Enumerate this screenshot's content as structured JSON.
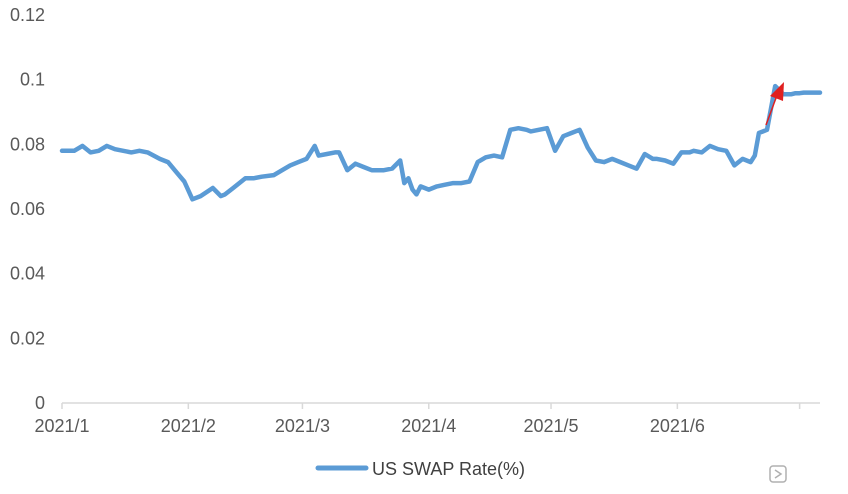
{
  "chart_data": {
    "type": "line",
    "title": "",
    "xlabel": "",
    "ylabel": "",
    "ylim": [
      0,
      0.12
    ],
    "y_ticks": [
      "0",
      "0.02",
      "0.04",
      "0.06",
      "0.08",
      "0.1",
      "0.12"
    ],
    "x_tick_labels": [
      "2021/1",
      "2021/2",
      "2021/3",
      "2021/4",
      "2021/5",
      "2021/6"
    ],
    "grid": false,
    "legend_position": "bottom",
    "series_color": "#5b9bd5",
    "annotation_arrow_color": "#e02020",
    "series": [
      {
        "name": "US SWAP Rate(%)",
        "x": [
          "2021-01-01",
          "2021-01-04",
          "2021-01-06",
          "2021-01-08",
          "2021-01-10",
          "2021-01-12",
          "2021-01-14",
          "2021-01-18",
          "2021-01-20",
          "2021-01-22",
          "2021-01-25",
          "2021-01-27",
          "2021-01-29",
          "2021-01-31",
          "2021-02-02",
          "2021-02-04",
          "2021-02-07",
          "2021-02-09",
          "2021-02-10",
          "2021-02-12",
          "2021-02-15",
          "2021-02-17",
          "2021-02-19",
          "2021-02-22",
          "2021-02-24",
          "2021-02-26",
          "2021-02-28",
          "2021-03-02",
          "2021-03-04",
          "2021-03-05",
          "2021-03-07",
          "2021-03-09",
          "2021-03-10",
          "2021-03-12",
          "2021-03-14",
          "2021-03-16",
          "2021-03-18",
          "2021-03-21",
          "2021-03-23",
          "2021-03-25",
          "2021-03-26",
          "2021-03-27",
          "2021-03-28",
          "2021-03-29",
          "2021-03-30",
          "2021-04-01",
          "2021-04-03",
          "2021-04-05",
          "2021-04-07",
          "2021-04-09",
          "2021-04-11",
          "2021-04-13",
          "2021-04-15",
          "2021-04-17",
          "2021-04-19",
          "2021-04-21",
          "2021-04-23",
          "2021-04-25",
          "2021-04-26",
          "2021-04-28",
          "2021-04-30",
          "2021-05-02",
          "2021-05-04",
          "2021-05-06",
          "2021-05-08",
          "2021-05-10",
          "2021-05-12",
          "2021-05-14",
          "2021-05-16",
          "2021-05-18",
          "2021-05-20",
          "2021-05-22",
          "2021-05-24",
          "2021-05-26",
          "2021-05-27",
          "2021-05-29",
          "2021-05-31",
          "2021-06-02",
          "2021-06-04",
          "2021-06-05",
          "2021-06-07",
          "2021-06-09",
          "2021-06-11",
          "2021-06-13",
          "2021-06-15",
          "2021-06-17",
          "2021-06-19",
          "2021-06-20",
          "2021-06-21",
          "2021-06-23",
          "2021-06-25",
          "2021-06-27",
          "2021-06-29",
          "2021-06-30",
          "2021-07-01",
          "2021-07-02",
          "2021-07-04",
          "2021-07-06"
        ],
        "values": [
          0.078,
          0.078,
          0.0795,
          0.0775,
          0.078,
          0.0795,
          0.0785,
          0.0775,
          0.078,
          0.0775,
          0.0755,
          0.0745,
          0.0715,
          0.0685,
          0.063,
          0.064,
          0.0665,
          0.064,
          0.0645,
          0.0665,
          0.0695,
          0.0695,
          0.07,
          0.0705,
          0.072,
          0.0735,
          0.0745,
          0.0755,
          0.0795,
          0.0765,
          0.077,
          0.0775,
          0.0775,
          0.072,
          0.074,
          0.073,
          0.072,
          0.072,
          0.0725,
          0.075,
          0.068,
          0.0695,
          0.066,
          0.0645,
          0.067,
          0.066,
          0.067,
          0.0675,
          0.068,
          0.068,
          0.0685,
          0.0745,
          0.076,
          0.0765,
          0.076,
          0.0845,
          0.085,
          0.0845,
          0.084,
          0.0845,
          0.085,
          0.078,
          0.0825,
          0.0835,
          0.0845,
          0.079,
          0.075,
          0.0745,
          0.0755,
          0.0745,
          0.0735,
          0.0725,
          0.077,
          0.0755,
          0.0755,
          0.075,
          0.074,
          0.0775,
          0.0775,
          0.078,
          0.0775,
          0.0795,
          0.0785,
          0.078,
          0.0735,
          0.0755,
          0.0745,
          0.0765,
          0.0835,
          0.0845,
          0.098,
          0.0955,
          0.0955,
          0.0958,
          0.0958,
          0.096,
          0.096,
          0.096
        ]
      }
    ]
  }
}
